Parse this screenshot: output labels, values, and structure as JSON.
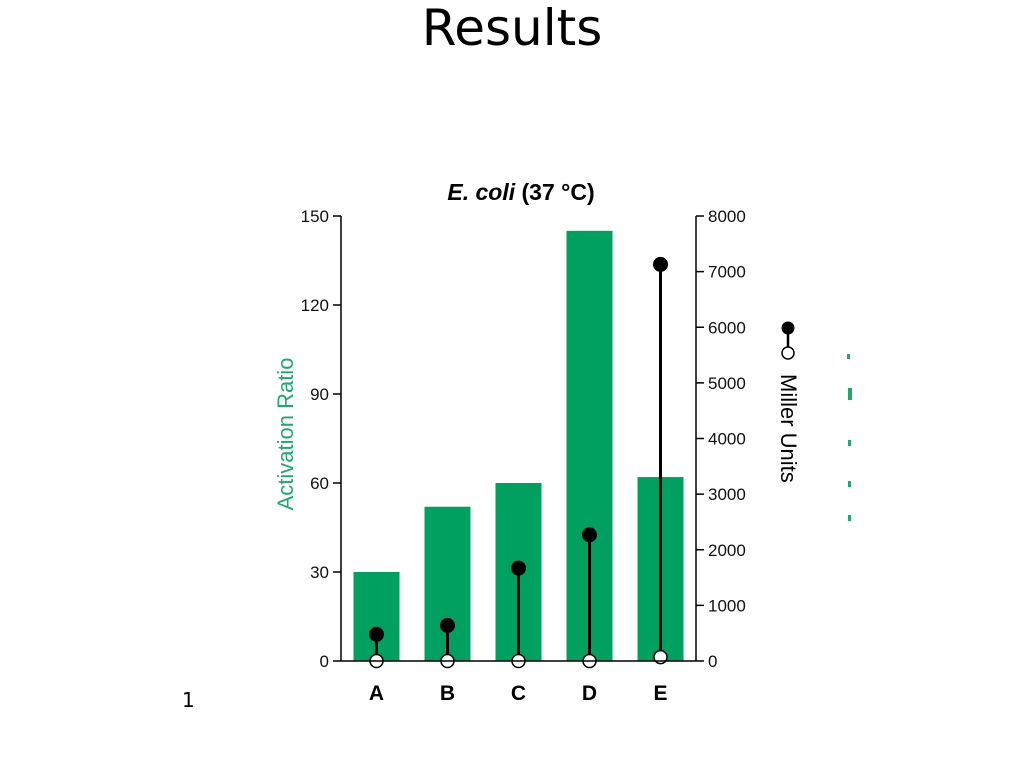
{
  "slide": {
    "title": "Results",
    "page_number": "1"
  },
  "colors": {
    "bar": "#00A060",
    "left_axis_title": "#1DAA6E",
    "stem": "#000000"
  },
  "chart_data": {
    "type": "bar",
    "title_italic": "E. coli",
    "title_rest": " (37 °C)",
    "categories": [
      "A",
      "B",
      "C",
      "D",
      "E"
    ],
    "left_axis": {
      "label": "Activation Ratio",
      "ylim": [
        0,
        150
      ],
      "ticks": [
        0,
        30,
        60,
        90,
        120,
        150
      ]
    },
    "right_axis": {
      "label": "Miller Units",
      "ylim": [
        0,
        8000
      ],
      "ticks": [
        0,
        1000,
        2000,
        3000,
        4000,
        5000,
        6000,
        7000,
        8000
      ]
    },
    "bars": {
      "axis": "left",
      "values": [
        30,
        52,
        60,
        145,
        62
      ]
    },
    "lollipops": {
      "axis": "right",
      "legend_marker": "filled-over-open circle",
      "filled_values": [
        480,
        640,
        1670,
        2270,
        7130
      ],
      "open_values": [
        0,
        0,
        0,
        0,
        70
      ]
    },
    "grid": false
  }
}
